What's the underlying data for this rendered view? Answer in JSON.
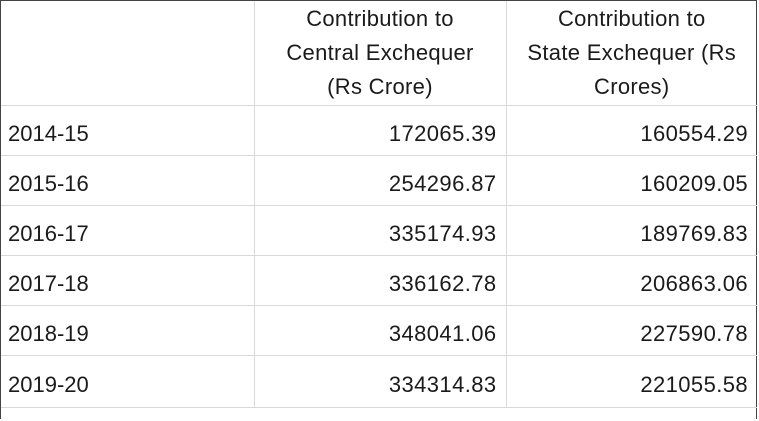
{
  "chart_data": {
    "type": "table",
    "columns": [
      "",
      "Contribution to Central Exchequer (Rs Crore)",
      "Contribution to State Exchequer (Rs Crores)"
    ],
    "header_lines": [
      [],
      [
        "Contribution to",
        "Central Exchequer",
        "(Rs Crore)"
      ],
      [
        "Contribution to",
        "State Exchequer (Rs",
        "Crores)"
      ]
    ],
    "rows": [
      {
        "year": "2014-15",
        "central": "172065.39",
        "state": "160554.29"
      },
      {
        "year": "2015-16",
        "central": "254296.87",
        "state": "160209.05"
      },
      {
        "year": "2016-17",
        "central": "335174.93",
        "state": "189769.83"
      },
      {
        "year": "2017-18",
        "central": "336162.78",
        "state": "206863.06"
      },
      {
        "year": "2018-19",
        "central": "348041.06",
        "state": "227590.78"
      },
      {
        "year": "2019-20",
        "central": "334314.83",
        "state": "221055.58"
      }
    ]
  },
  "colors": {
    "text": "#1a1a1a",
    "grid": "#d9d9d9",
    "outer_border": "#444444",
    "background": "#ffffff"
  }
}
